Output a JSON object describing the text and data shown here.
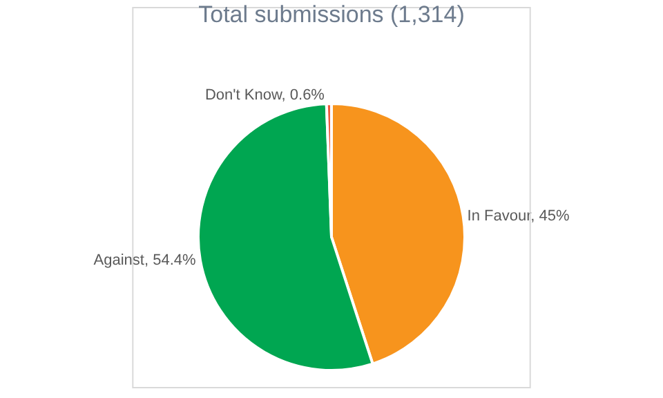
{
  "chart_data": {
    "type": "pie",
    "title": "Total submissions (1,314)",
    "categories": [
      "In Favour",
      "Against",
      "Don't Know"
    ],
    "values": [
      45,
      54.4,
      0.6
    ],
    "colors": [
      "#f7941d",
      "#00a651",
      "#ef5a3c"
    ],
    "value_labels": [
      "45%",
      "54.4%",
      "0.6%"
    ],
    "legend": false
  }
}
